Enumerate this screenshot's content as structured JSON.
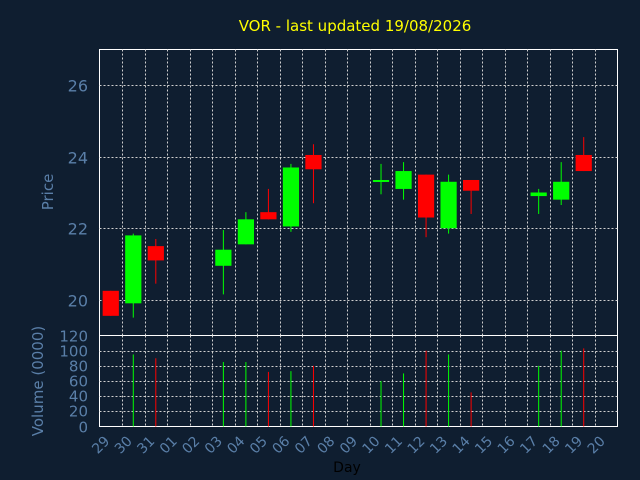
{
  "chart_data": {
    "type": "candlestick",
    "title": "VOR - last updated 19/08/2026",
    "xlabel": "Day",
    "ylabel": "Price",
    "volume_label": "Volume (0000)",
    "grid": true,
    "categories": [
      "29",
      "30",
      "31",
      "01",
      "02",
      "03",
      "04",
      "05",
      "06",
      "07",
      "08",
      "09",
      "10",
      "11",
      "12",
      "13",
      "14",
      "15",
      "16",
      "17",
      "18",
      "19",
      "20"
    ],
    "price_ylim": [
      19.0,
      27.0
    ],
    "price_ticks": [
      20,
      22,
      24,
      26
    ],
    "volume_ylim": [
      0,
      120
    ],
    "volume_ticks": [
      0,
      20,
      40,
      60,
      80,
      100,
      120
    ],
    "candles": [
      {
        "day": "29",
        "open": 20.25,
        "high": 20.25,
        "low": 19.55,
        "close": 19.55,
        "volume": 0
      },
      {
        "day": "30",
        "open": 19.9,
        "high": 21.85,
        "low": 19.5,
        "close": 21.8,
        "volume": 95
      },
      {
        "day": "31",
        "open": 21.5,
        "high": 21.7,
        "low": 20.45,
        "close": 21.1,
        "volume": 90
      },
      {
        "day": "03",
        "open": 20.95,
        "high": 21.95,
        "low": 20.15,
        "close": 21.4,
        "volume": 85
      },
      {
        "day": "04",
        "open": 21.55,
        "high": 22.45,
        "low": 21.55,
        "close": 22.25,
        "volume": 85
      },
      {
        "day": "05",
        "open": 22.45,
        "high": 23.1,
        "low": 22.25,
        "close": 22.25,
        "volume": 72
      },
      {
        "day": "06",
        "open": 22.05,
        "high": 23.8,
        "low": 21.9,
        "close": 23.7,
        "volume": 73
      },
      {
        "day": "07",
        "open": 24.05,
        "high": 24.35,
        "low": 22.7,
        "close": 23.65,
        "volume": 80
      },
      {
        "day": "10",
        "open": 23.3,
        "high": 23.8,
        "low": 22.95,
        "close": 23.35,
        "volume": 60
      },
      {
        "day": "11",
        "open": 23.1,
        "high": 23.85,
        "low": 22.8,
        "close": 23.6,
        "volume": 70
      },
      {
        "day": "12",
        "open": 23.5,
        "high": 23.5,
        "low": 21.75,
        "close": 22.3,
        "volume": 100
      },
      {
        "day": "13",
        "open": 22.0,
        "high": 23.5,
        "low": 21.85,
        "close": 23.3,
        "volume": 95
      },
      {
        "day": "14",
        "open": 23.35,
        "high": 23.35,
        "low": 22.4,
        "close": 23.05,
        "volume": 45
      },
      {
        "day": "17",
        "open": 22.9,
        "high": 23.1,
        "low": 22.4,
        "close": 23.0,
        "volume": 80
      },
      {
        "day": "18",
        "open": 22.8,
        "high": 23.85,
        "low": 22.65,
        "close": 23.3,
        "volume": 100
      },
      {
        "day": "19",
        "open": 24.05,
        "high": 24.55,
        "low": 23.6,
        "close": 23.6,
        "volume": 103
      }
    ],
    "colors": {
      "background": "#0f1e30",
      "plot_border": "#ffffff",
      "grid": "#d0d0d0",
      "axis_text": "#5a7fa8",
      "title": "#ffff00",
      "up": "#00ff00",
      "down": "#ff0000"
    }
  }
}
